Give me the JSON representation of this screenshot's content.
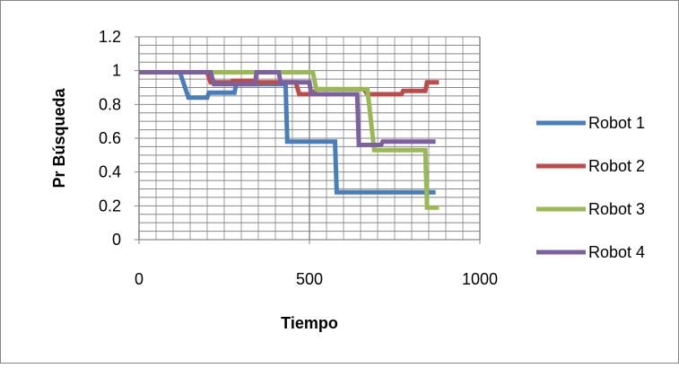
{
  "chart_data": {
    "type": "line",
    "title": "",
    "xlabel": "Tiempo",
    "ylabel": "Pr Búsqueda",
    "xlim": [
      0,
      1000
    ],
    "ylim": [
      0,
      1.2
    ],
    "x_ticks": [
      0,
      500,
      1000
    ],
    "x_tick_labels": [
      "0",
      "500",
      "1000"
    ],
    "y_ticks": [
      0,
      0.2,
      0.4,
      0.6,
      0.8,
      1,
      1.2
    ],
    "y_tick_labels": [
      "0",
      "0.2",
      "0.4",
      "0.6",
      "0.8",
      "1",
      "1.2"
    ],
    "grid": true,
    "legend_position": "right",
    "series": [
      {
        "name": "Robot 1",
        "color": "#4A7EBB",
        "points": [
          [
            0,
            0.99
          ],
          [
            120,
            0.99
          ],
          [
            145,
            0.84
          ],
          [
            200,
            0.84
          ],
          [
            205,
            0.87
          ],
          [
            280,
            0.87
          ],
          [
            285,
            0.92
          ],
          [
            430,
            0.92
          ],
          [
            435,
            0.58
          ],
          [
            575,
            0.58
          ],
          [
            580,
            0.28
          ],
          [
            870,
            0.28
          ]
        ]
      },
      {
        "name": "Robot 2",
        "color": "#BE4B48",
        "points": [
          [
            0,
            0.99
          ],
          [
            200,
            0.99
          ],
          [
            210,
            0.93
          ],
          [
            270,
            0.93
          ],
          [
            275,
            0.94
          ],
          [
            340,
            0.94
          ],
          [
            345,
            0.93
          ],
          [
            460,
            0.93
          ],
          [
            470,
            0.86
          ],
          [
            510,
            0.86
          ],
          [
            520,
            0.89
          ],
          [
            660,
            0.89
          ],
          [
            670,
            0.86
          ],
          [
            770,
            0.86
          ],
          [
            775,
            0.88
          ],
          [
            840,
            0.88
          ],
          [
            845,
            0.93
          ],
          [
            880,
            0.93
          ]
        ]
      },
      {
        "name": "Robot 3",
        "color": "#98B954",
        "points": [
          [
            0,
            0.99
          ],
          [
            510,
            0.99
          ],
          [
            520,
            0.89
          ],
          [
            670,
            0.89
          ],
          [
            690,
            0.53
          ],
          [
            840,
            0.53
          ],
          [
            845,
            0.19
          ],
          [
            880,
            0.19
          ]
        ]
      },
      {
        "name": "Robot 4",
        "color": "#7D60A0",
        "points": [
          [
            0,
            0.99
          ],
          [
            210,
            0.99
          ],
          [
            220,
            0.92
          ],
          [
            340,
            0.92
          ],
          [
            345,
            0.99
          ],
          [
            410,
            0.99
          ],
          [
            415,
            0.93
          ],
          [
            500,
            0.93
          ],
          [
            505,
            0.86
          ],
          [
            640,
            0.86
          ],
          [
            645,
            0.56
          ],
          [
            710,
            0.56
          ],
          [
            715,
            0.58
          ],
          [
            870,
            0.58
          ]
        ]
      }
    ]
  }
}
